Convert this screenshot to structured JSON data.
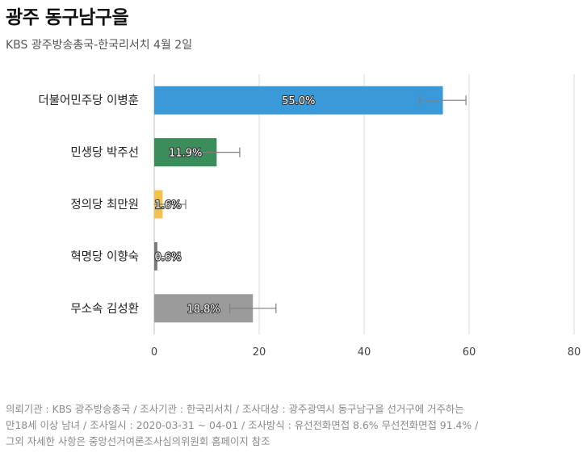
{
  "header": {
    "title": "광주 동구남구을",
    "subtitle": "KBS 광주방송총국-한국리서치 4월 2일"
  },
  "chart_data": {
    "type": "bar",
    "orientation": "horizontal",
    "categories": [
      "더불어민주당 이병훈",
      "민생당 박주선",
      "정의당 최만원",
      "혁명당 이향숙",
      "무소속 김성환"
    ],
    "values": [
      55.0,
      11.9,
      1.6,
      0.6,
      18.8
    ],
    "data_labels": [
      "55.0%",
      "11.9%",
      "1.6%",
      "0.6%",
      "18.8%"
    ],
    "error_margin": 4.4,
    "colors": [
      "#3a9ad9",
      "#3c8d5c",
      "#f2c14e",
      "#7a7a7a",
      "#9b9b9b"
    ],
    "xlim": [
      0,
      80
    ],
    "xticks": [
      0,
      20,
      40,
      60,
      80
    ],
    "grid": true,
    "title": "",
    "xlabel": "",
    "ylabel": ""
  },
  "footer": {
    "lines": [
      "의뢰기관 : KBS 광주방송총국 / 조사기관 : 한국리서치 / 조사대상 : 광주광역시 동구남구을 선거구에 거주하는",
      "만18세 이상 남녀 / 조사일시 : 2020-03-31 ~ 04-01 / 조사방식 : 유선전화면접 8.6% 무선전화면접 91.4% /",
      "그외 자세한 사항은 중앙선거여론조사심의위원회 홈페이지 참조"
    ]
  }
}
